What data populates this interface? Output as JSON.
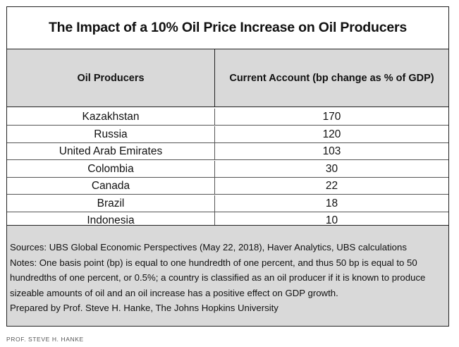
{
  "title": "The Impact of a 10% Oil Price Increase on Oil Producers",
  "table": {
    "headers": [
      "Oil Producers",
      "Current Account (bp change as % of GDP)"
    ],
    "rows": [
      {
        "producer": "Kazakhstan",
        "value": "170"
      },
      {
        "producer": "Russia",
        "value": "120"
      },
      {
        "producer": "United Arab Emirates",
        "value": "103"
      },
      {
        "producer": "Colombia",
        "value": "30"
      },
      {
        "producer": "Canada",
        "value": "22"
      },
      {
        "producer": "Brazil",
        "value": "18"
      },
      {
        "producer": "Indonesia",
        "value": "10"
      }
    ]
  },
  "notes": {
    "lines": [
      "Sources: UBS Global Economic Perspectives (May 22, 2018), Haver Analytics, UBS calculations",
      "Notes: One basis point (bp) is equal to one hundredth of one percent, and thus 50 bp is equal to 50",
      "hundredths of one percent, or 0.5%; a country is classified as an oil producer if it is known to produce",
      "sizeable amounts of oil and an oil increase has a positive effect on GDP growth.",
      "Prepared by Prof. Steve H. Hanke, The Johns Hopkins University"
    ]
  },
  "credit": "PROF. STEVE H. HANKE",
  "colors": {
    "header_fill": "#d9d9d9",
    "notes_fill": "#d9d9d9",
    "border": "#222222"
  }
}
